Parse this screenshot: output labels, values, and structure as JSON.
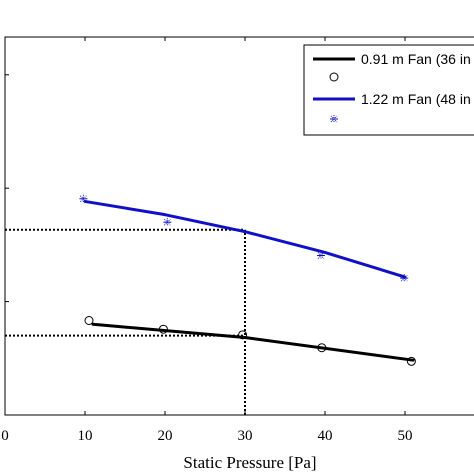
{
  "chart_data": {
    "type": "line",
    "xlabel": "Static Pressure [Pa]",
    "ylabel": "",
    "title": "",
    "xlim": [
      0,
      60
    ],
    "ylim": [
      0,
      1
    ],
    "x_ticks": [
      0,
      10,
      20,
      30,
      40,
      50
    ],
    "x_tick_labels": [
      "0",
      "10",
      "20",
      "30",
      "40",
      "50"
    ],
    "y_ticks": [
      0,
      0.3,
      0.6,
      0.9
    ],
    "grid": false,
    "legend_position": "top-right",
    "series": [
      {
        "name": "0.91 m Fan (36 in",
        "style": "line",
        "color": "#000000",
        "x": [
          11,
          30,
          51
        ],
        "y": [
          0.24,
          0.205,
          0.145
        ]
      },
      {
        "name": "",
        "style": "circle-markers",
        "color": "#000000",
        "x": [
          10.5,
          19.8,
          29.7,
          39.6,
          50.8
        ],
        "y": [
          0.25,
          0.227,
          0.212,
          0.178,
          0.142
        ]
      },
      {
        "name": "1.22 m Fan (48 in",
        "style": "line",
        "color": "#1010c8",
        "x": [
          10,
          20,
          30,
          40,
          50
        ],
        "y": [
          0.565,
          0.53,
          0.485,
          0.43,
          0.365
        ]
      },
      {
        "name": "",
        "style": "star-markers",
        "color": "#1010c8",
        "x": [
          9.8,
          20.3,
          39.5,
          49.9
        ],
        "y": [
          0.572,
          0.51,
          0.422,
          0.362
        ]
      }
    ],
    "reference_lines": [
      {
        "axis": "vertical",
        "x": 30,
        "y_range": [
          0,
          0.49
        ]
      },
      {
        "axis": "horizontal",
        "y": 0.49,
        "x_range": [
          0,
          30
        ]
      },
      {
        "axis": "horizontal",
        "y": 0.21,
        "x_range": [
          0,
          30
        ]
      }
    ]
  },
  "legend": {
    "entries": [
      {
        "label": "0.91 m Fan (36 in",
        "symbol": "line",
        "color": "#000000"
      },
      {
        "label": "",
        "symbol": "circle",
        "color": "#000000"
      },
      {
        "label": "1.22 m Fan (48 in",
        "symbol": "line",
        "color": "#1010c8"
      },
      {
        "label": "",
        "symbol": "star",
        "color": "#1010c8"
      }
    ]
  }
}
